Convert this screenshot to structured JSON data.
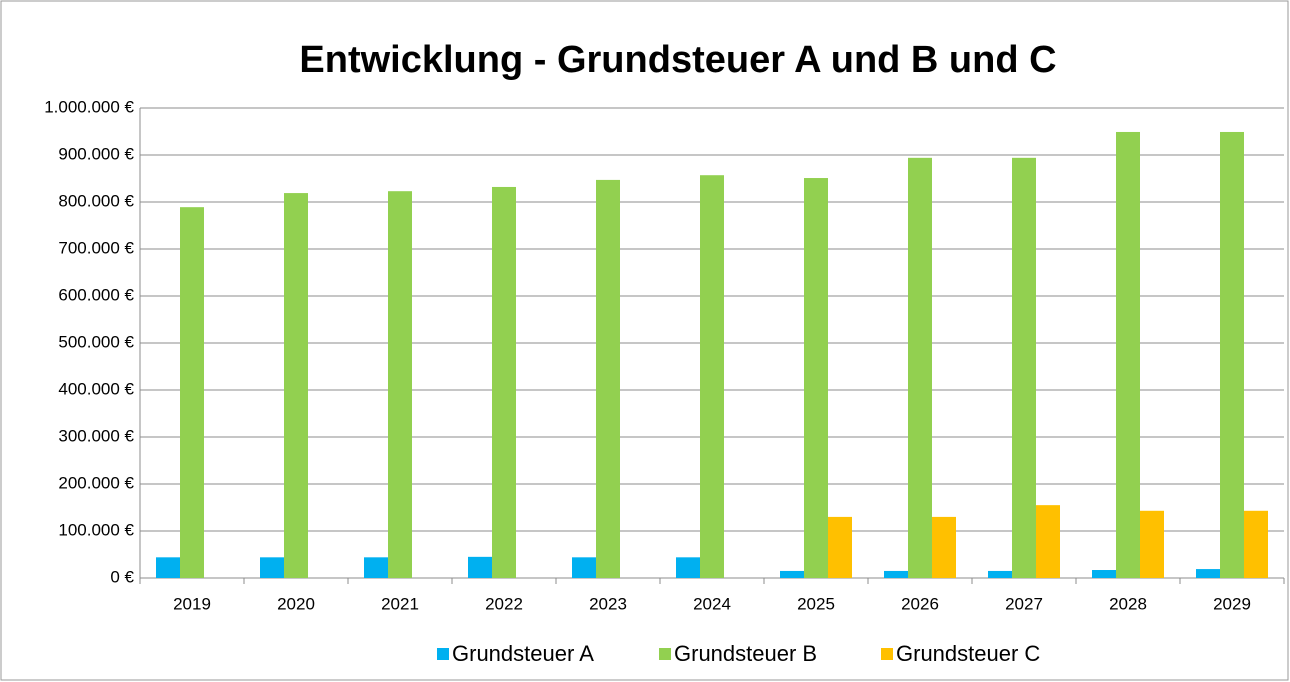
{
  "chart_data": {
    "type": "bar",
    "title": "Entwicklung - Grundsteuer A und B und C",
    "categories": [
      "2019",
      "2020",
      "2021",
      "2022",
      "2023",
      "2024",
      "2025",
      "2026",
      "2027",
      "2028",
      "2029"
    ],
    "series": [
      {
        "name": "Grundsteuer A",
        "color": "#00b0f0",
        "values": [
          44000,
          44000,
          44000,
          45000,
          44000,
          44000,
          15000,
          15000,
          15000,
          17000,
          19000
        ]
      },
      {
        "name": "Grundsteuer B",
        "color": "#92d050",
        "values": [
          789000,
          819000,
          823000,
          832000,
          847000,
          857000,
          851000,
          894000,
          894000,
          949000,
          949000
        ]
      },
      {
        "name": "Grundsteuer C",
        "color": "#ffc000",
        "values": [
          null,
          null,
          null,
          null,
          null,
          null,
          130000,
          130000,
          155000,
          143000,
          143000
        ]
      }
    ],
    "ylim": [
      0,
      1000000
    ],
    "yticks": [
      {
        "value": 0,
        "label": "0 €"
      },
      {
        "value": 100000,
        "label": "100.000 €"
      },
      {
        "value": 200000,
        "label": "200.000 €"
      },
      {
        "value": 300000,
        "label": "300.000 €"
      },
      {
        "value": 400000,
        "label": "400.000 €"
      },
      {
        "value": 500000,
        "label": "500.000 €"
      },
      {
        "value": 600000,
        "label": "600.000 €"
      },
      {
        "value": 700000,
        "label": "700.000 €"
      },
      {
        "value": 800000,
        "label": "800.000 €"
      },
      {
        "value": 900000,
        "label": "900.000 €"
      },
      {
        "value": 1000000,
        "label": "1.000.000 €"
      }
    ],
    "grid": true,
    "legend": "bottom"
  }
}
